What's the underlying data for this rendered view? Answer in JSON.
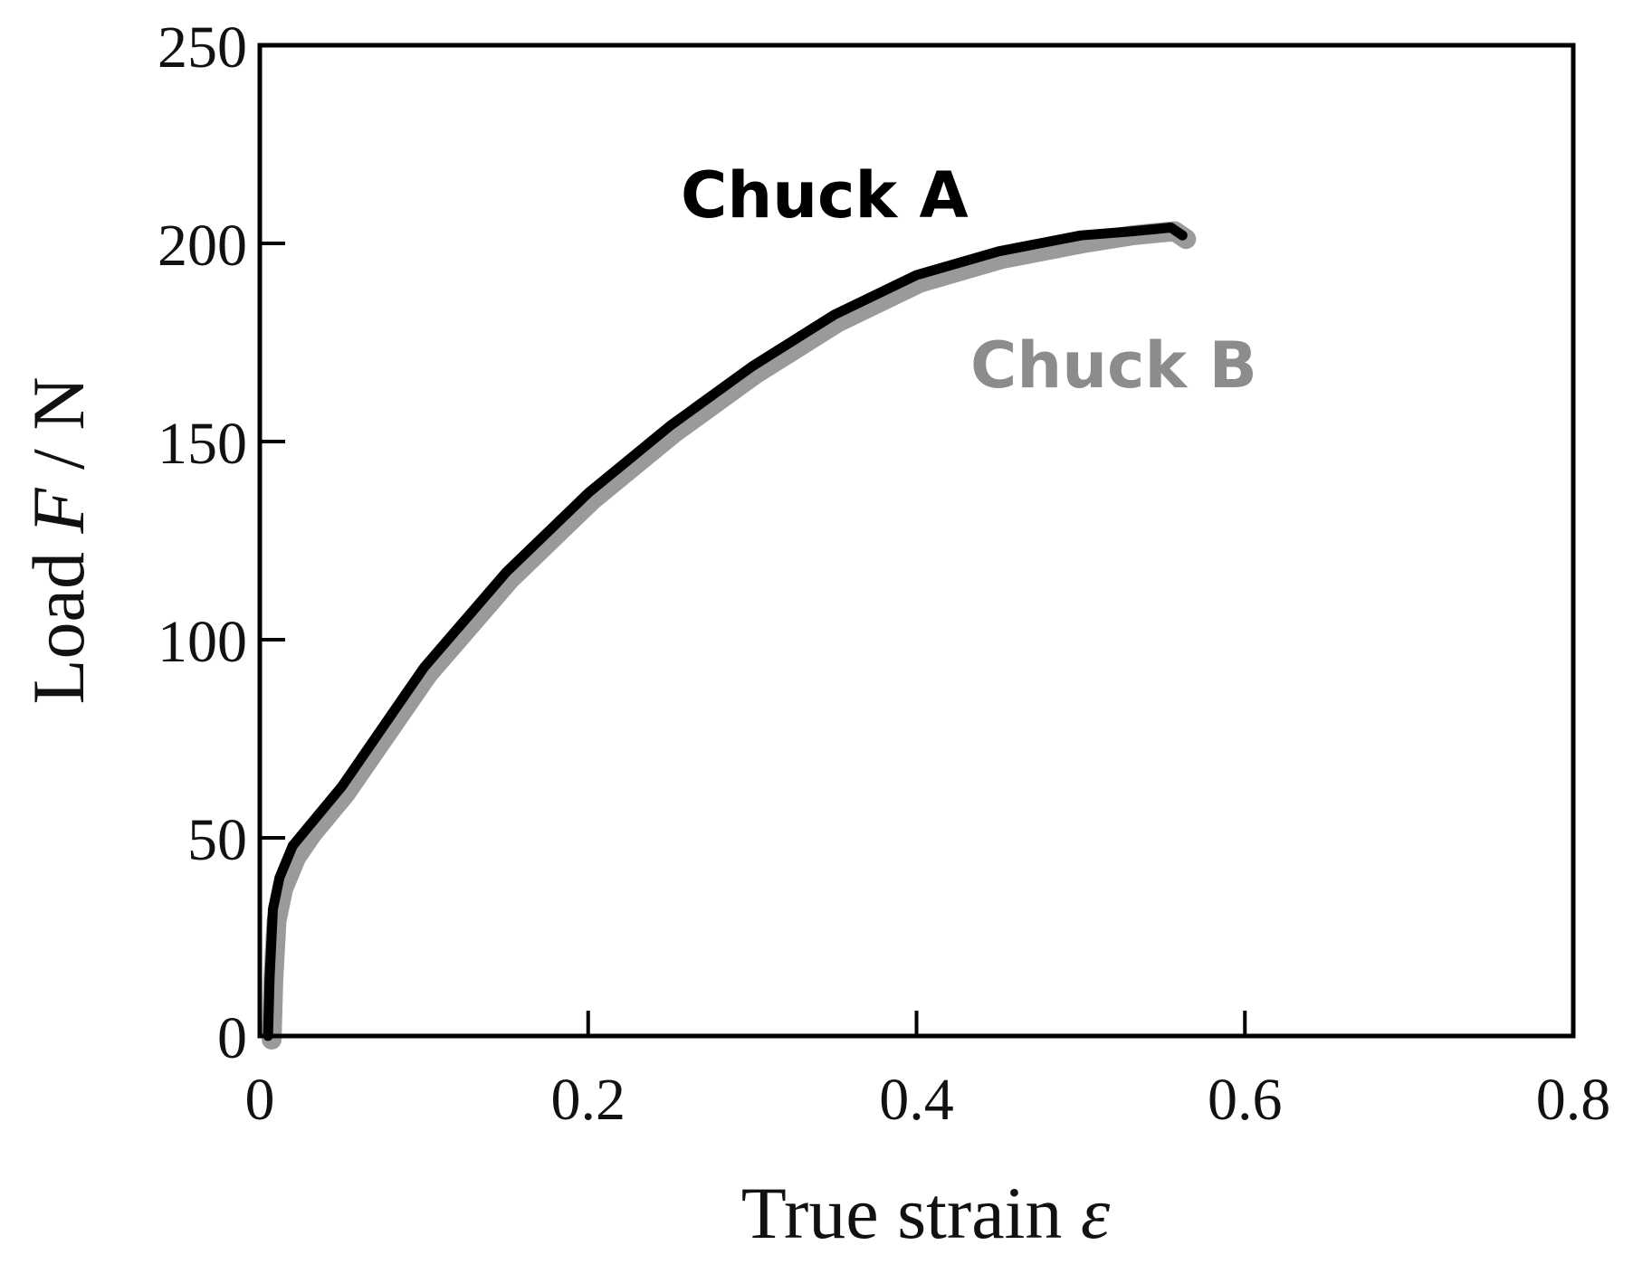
{
  "chart_data": {
    "type": "line",
    "xlabel": {
      "text": "True strain ",
      "symbol": "ε"
    },
    "ylabel": {
      "text": "Load ",
      "symbol": "F",
      "unit": " / N"
    },
    "xlim": [
      0,
      0.8
    ],
    "ylim": [
      0,
      250
    ],
    "x_ticks": [
      0,
      0.2,
      0.4,
      0.6,
      0.8
    ],
    "x_tick_labels": [
      "0",
      "0.2",
      "0.4",
      "0.6",
      "0.8"
    ],
    "y_ticks": [
      0,
      50,
      100,
      150,
      200,
      250
    ],
    "y_tick_labels": [
      "0",
      "50",
      "100",
      "150",
      "200",
      "250"
    ],
    "grid": false,
    "series": [
      {
        "name": "Chuck B",
        "color": "#9a9a9a",
        "x": [
          0.005,
          0.006,
          0.008,
          0.012,
          0.02,
          0.03,
          0.05,
          0.08,
          0.1,
          0.15,
          0.2,
          0.25,
          0.3,
          0.35,
          0.4,
          0.45,
          0.5,
          0.53,
          0.555,
          0.562
        ],
        "y": [
          0,
          15,
          30,
          38,
          46,
          52,
          62,
          80,
          92,
          116,
          136,
          153,
          168,
          181,
          191,
          197,
          201,
          203,
          204,
          202
        ]
      },
      {
        "name": "Chuck A",
        "color": "#000000",
        "x": [
          0.005,
          0.006,
          0.008,
          0.012,
          0.02,
          0.03,
          0.05,
          0.08,
          0.1,
          0.15,
          0.2,
          0.25,
          0.3,
          0.35,
          0.4,
          0.45,
          0.5,
          0.53,
          0.555,
          0.562
        ],
        "y": [
          0,
          15,
          32,
          40,
          48,
          53,
          63,
          81,
          93,
          117,
          137,
          154,
          169,
          182,
          192,
          198,
          202,
          203,
          204,
          202
        ]
      }
    ]
  }
}
